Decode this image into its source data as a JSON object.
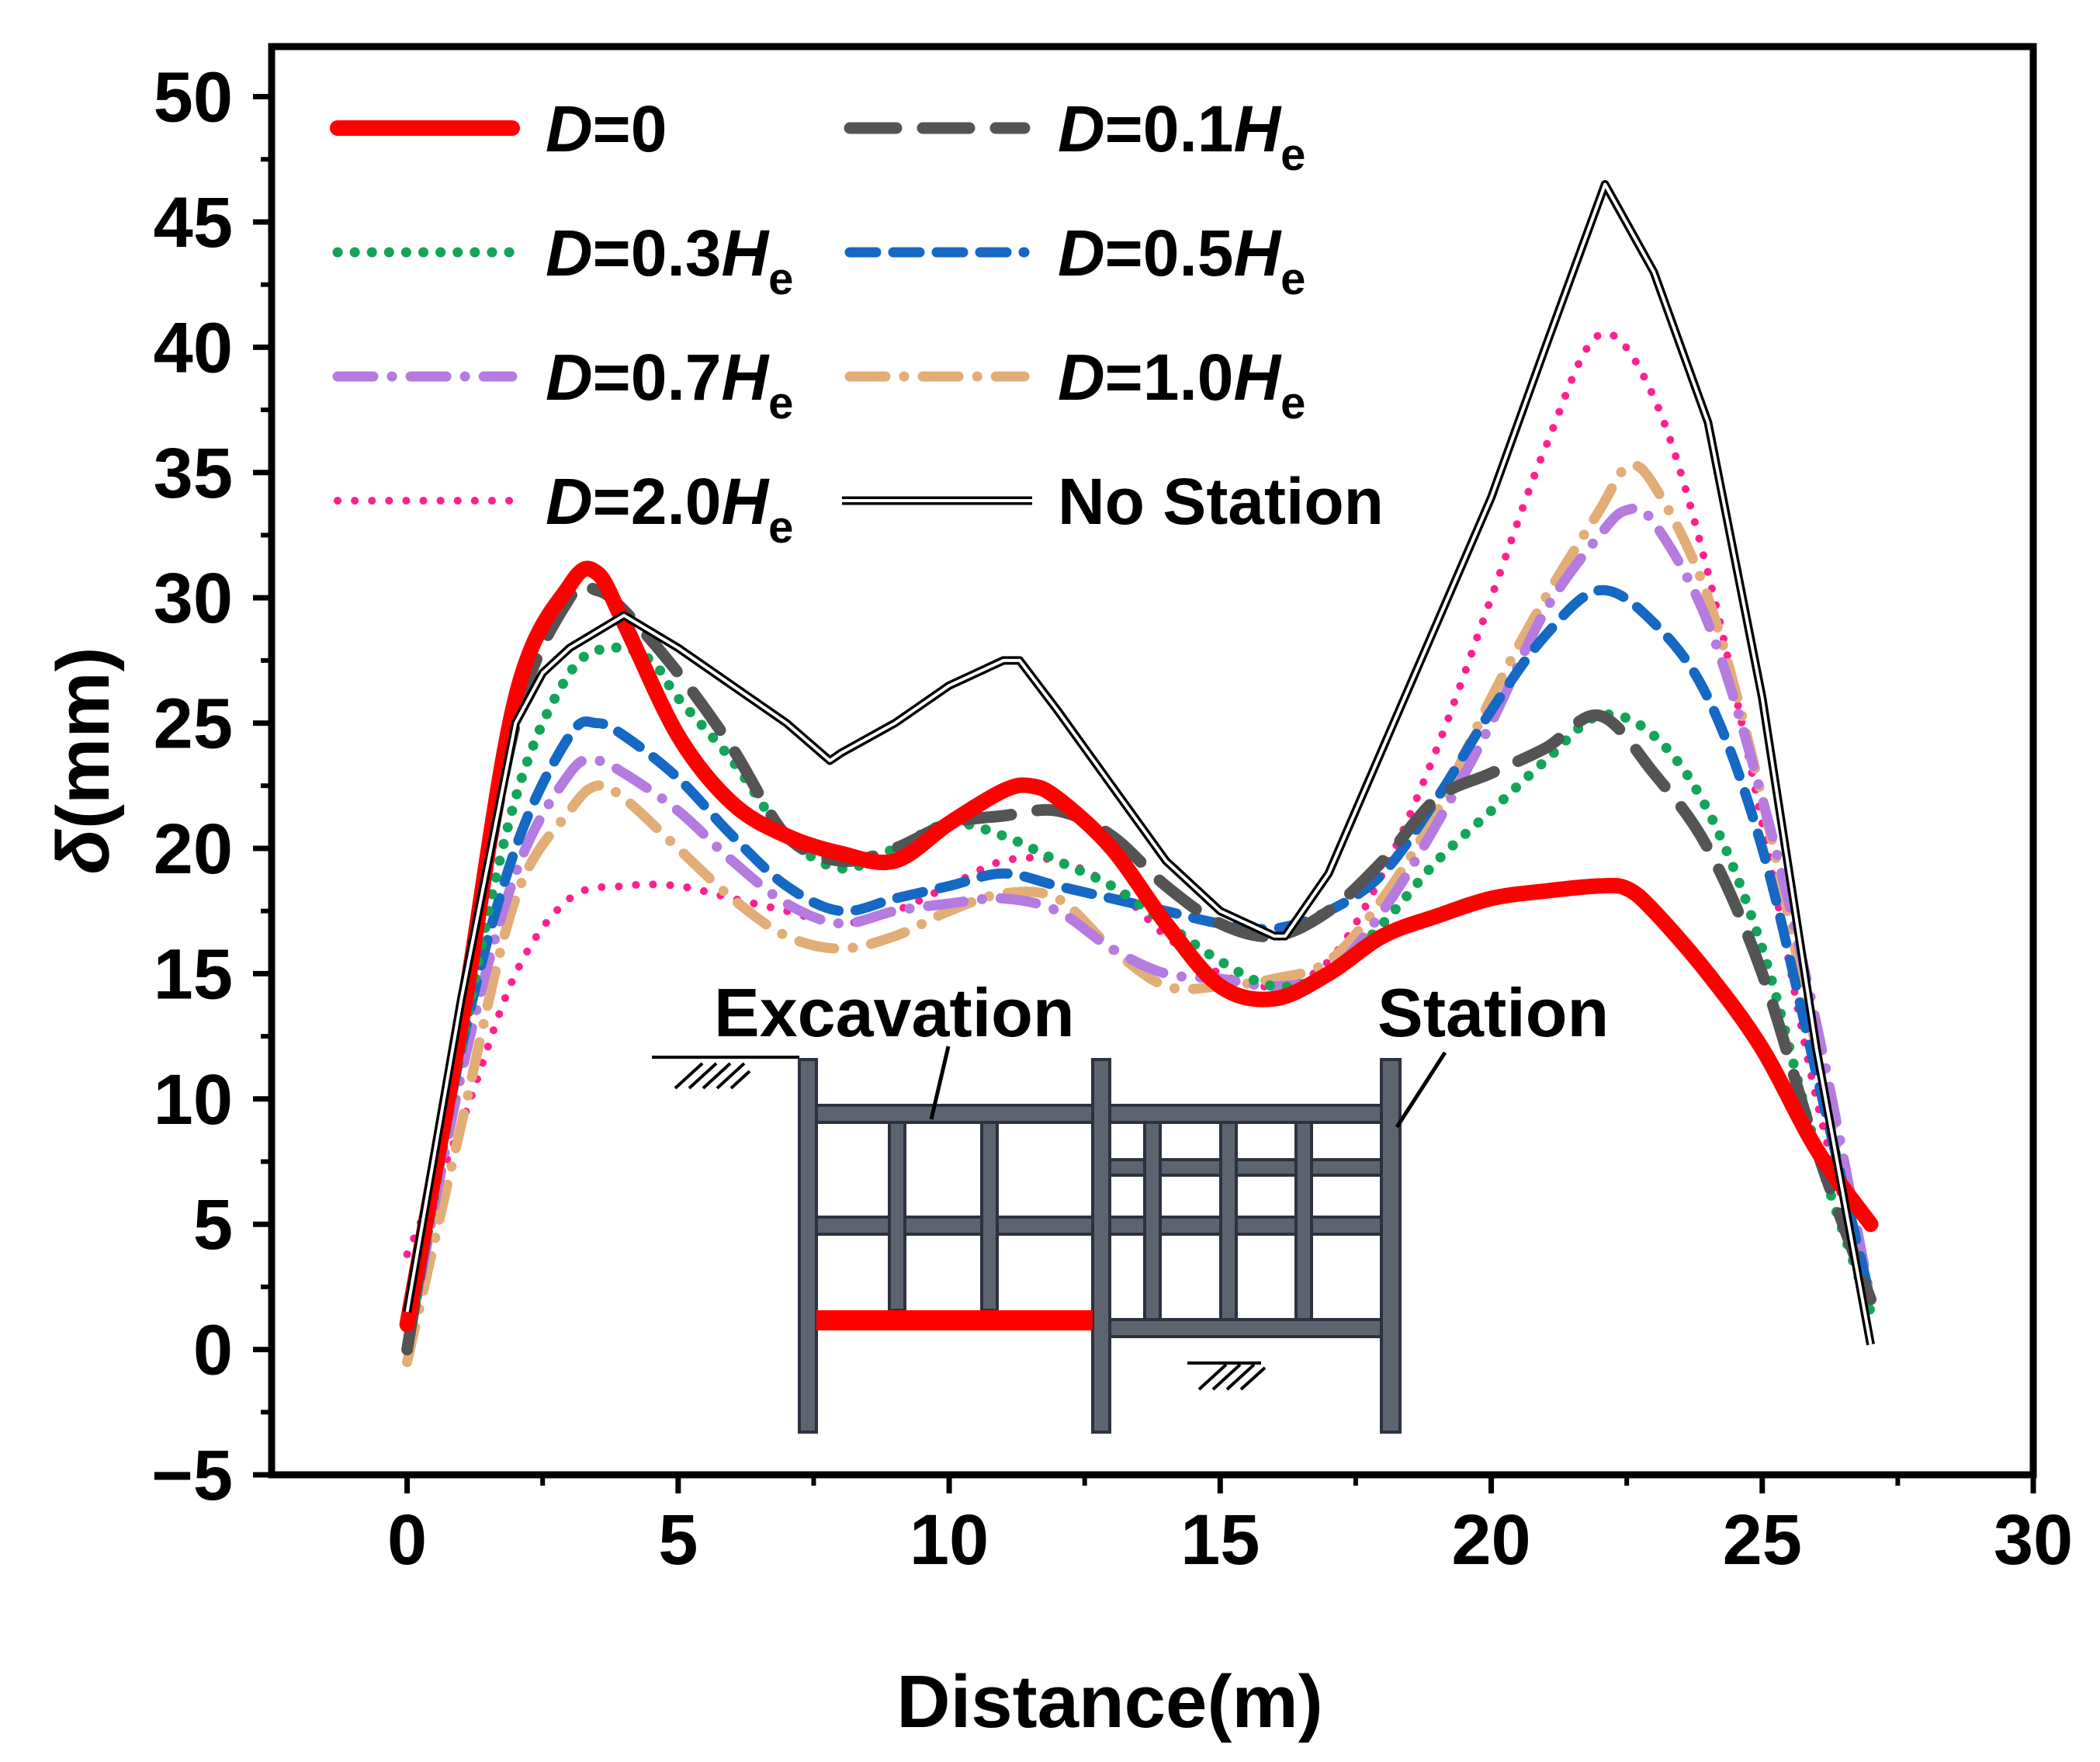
{
  "chart_data": {
    "type": "line",
    "title": "",
    "xlabel": "Distance(m)",
    "ylabel_symbol": "δ",
    "ylabel_unit": "(mm)",
    "xlim": [
      -2.5,
      30
    ],
    "ylim": [
      -5,
      52
    ],
    "xticks": [
      0,
      5,
      10,
      15,
      20,
      25,
      30
    ],
    "yticks": [
      -5,
      0,
      5,
      10,
      15,
      20,
      25,
      30,
      35,
      40,
      45,
      50
    ],
    "xtick_labels": [
      "0",
      "5",
      "10",
      "15",
      "20",
      "25",
      "30"
    ],
    "ytick_labels": [
      "−5",
      "0",
      "5",
      "10",
      "15",
      "20",
      "25",
      "30",
      "35",
      "40",
      "45",
      "50"
    ],
    "legend_position": "top-left",
    "series": [
      {
        "name_var": "D",
        "name_eq": "=0",
        "name_sub": "",
        "color": "#ff0000",
        "style": "solid",
        "x": [
          0,
          1,
          2,
          3,
          3.5,
          4,
          5,
          6,
          7,
          8,
          9,
          10,
          11,
          11.5,
          12,
          13,
          14,
          15,
          16,
          17,
          18,
          19,
          20,
          21,
          22,
          22.5,
          23,
          24,
          25,
          26,
          27
        ],
        "y": [
          1,
          13,
          26,
          30.5,
          31,
          29,
          24.5,
          21.8,
          20.5,
          19.8,
          19.5,
          21,
          22.3,
          22.5,
          22,
          20,
          17,
          14.5,
          14,
          15,
          16.5,
          17.3,
          18,
          18.3,
          18.5,
          18.4,
          17.5,
          15,
          12,
          8,
          5
        ]
      },
      {
        "name_var": "D",
        "name_eq": "=0.1",
        "name_sub": "e",
        "color": "#545454",
        "style": "longdash",
        "x": [
          0,
          1,
          2,
          3,
          3.5,
          4,
          5,
          6,
          7,
          8,
          9,
          10,
          11,
          12,
          13,
          14,
          15,
          16,
          17,
          18,
          19,
          20,
          21,
          22,
          23,
          24,
          25,
          26,
          27
        ],
        "y": [
          0,
          13,
          25,
          30,
          30.3,
          29.5,
          27,
          24,
          20.5,
          19.5,
          20,
          21,
          21.3,
          21.5,
          20.5,
          18.5,
          17,
          16.5,
          17.5,
          19.5,
          22,
          23,
          24,
          25.3,
          23,
          20,
          15,
          8,
          2
        ]
      },
      {
        "name_var": "D",
        "name_eq": "=0.3",
        "name_sub": "e",
        "color": "#12a55a",
        "style": "dots",
        "x": [
          0,
          1,
          2,
          3,
          3.8,
          4.5,
          5,
          6,
          7,
          8,
          9,
          10,
          11,
          12,
          13,
          14,
          15,
          16,
          17,
          18,
          19,
          20,
          21,
          22,
          23,
          24,
          25,
          26,
          27
        ],
        "y": [
          0,
          12,
          22,
          27,
          28,
          27.5,
          26,
          23.5,
          20.5,
          19.2,
          20,
          21,
          20.5,
          19.5,
          18.5,
          17,
          15.5,
          14.5,
          15,
          17,
          19.5,
          21.5,
          23.5,
          25.3,
          24.5,
          21.5,
          16,
          8,
          1.5
        ]
      },
      {
        "name_var": "D",
        "name_eq": "=0.5",
        "name_sub": "e",
        "color": "#1568c4",
        "style": "dash",
        "x": [
          0,
          1,
          2,
          3,
          3.5,
          4,
          5,
          6,
          7,
          8,
          9,
          10,
          11,
          12,
          13,
          14,
          15,
          16,
          17,
          18,
          19,
          20,
          21,
          22,
          23,
          24,
          25,
          26,
          27
        ],
        "y": [
          0,
          12,
          20,
          24.5,
          25,
          24.5,
          22.8,
          20.5,
          18.5,
          17.5,
          18,
          18.5,
          19,
          18.5,
          18,
          17.5,
          17,
          16.8,
          17.5,
          19,
          22,
          25.5,
          28.5,
          30.3,
          29,
          26,
          20,
          11,
          2
        ]
      },
      {
        "name_var": "D",
        "name_eq": "=0.7",
        "name_sub": "e",
        "color": "#b57be0",
        "style": "dashdot",
        "x": [
          0,
          1,
          2,
          3,
          3.5,
          4,
          5,
          6,
          7,
          8,
          9,
          10,
          11,
          12,
          13,
          14,
          15,
          16,
          17,
          18,
          19,
          20,
          21,
          22,
          22.5,
          23,
          24,
          25,
          26,
          27
        ],
        "y": [
          0,
          11,
          19,
          23,
          23.5,
          23,
          21.5,
          19.5,
          17.8,
          17,
          17.5,
          17.8,
          18,
          17.5,
          16,
          15,
          14.8,
          14.5,
          15,
          17.5,
          21,
          25,
          29.5,
          32.5,
          33.5,
          33,
          29,
          22,
          13,
          2
        ]
      },
      {
        "name_var": "D",
        "name_eq": "=1.0",
        "name_sub": "e",
        "color": "#e3ad78",
        "style": "dashdot",
        "x": [
          0,
          1,
          2,
          3,
          3.5,
          4,
          5,
          6,
          7,
          8,
          9,
          10,
          11,
          12,
          13,
          14,
          15,
          16,
          17,
          18,
          19,
          20,
          21,
          22,
          22.5,
          23,
          24,
          25,
          26,
          27
        ],
        "y": [
          -0.5,
          9,
          18,
          21.5,
          22.5,
          22,
          20,
          18,
          16.5,
          16,
          16.5,
          17.5,
          18.2,
          18,
          16,
          14.5,
          14.5,
          14.8,
          15.5,
          18,
          21.5,
          26,
          30,
          33.5,
          35.2,
          34.5,
          30,
          22,
          12,
          2
        ]
      },
      {
        "name_var": "D",
        "name_eq": "=2.0",
        "name_sub": "e",
        "color": "#ff1f8f",
        "style": "dotted",
        "x": [
          0,
          1,
          2,
          3,
          4,
          5,
          6,
          7,
          8,
          9,
          10,
          11,
          12,
          13,
          14,
          15,
          16,
          17,
          18,
          19,
          20,
          21,
          22,
          23,
          24,
          25,
          26,
          27
        ],
        "y": [
          3.8,
          9,
          15,
          18,
          18.5,
          18.5,
          18,
          17.5,
          17,
          17.5,
          18.5,
          19.5,
          19.5,
          18.5,
          16.5,
          15,
          14.5,
          15.5,
          19,
          24,
          30,
          36,
          40.5,
          38,
          31,
          21,
          10,
          2
        ]
      },
      {
        "name_var": "",
        "name_eq": "No Station",
        "name_sub": "",
        "color": "#000000",
        "style": "double",
        "x": [
          0,
          1,
          2,
          2.5,
          3,
          4,
          5,
          6,
          7,
          7.8,
          8,
          9,
          10,
          11,
          11.3,
          12,
          13,
          14,
          15,
          16,
          16.2,
          17,
          18,
          19,
          20,
          21,
          22.1,
          23,
          24,
          25,
          26,
          27
        ],
        "y": [
          1.5,
          14,
          25,
          27,
          28,
          29.3,
          28,
          26.5,
          25,
          23.5,
          23.8,
          25,
          26.5,
          27.5,
          27.5,
          25.5,
          22.5,
          19.5,
          17.5,
          16.5,
          16.5,
          19,
          24,
          29,
          34,
          40,
          46.5,
          43,
          37,
          26,
          12,
          0.2
        ]
      }
    ]
  },
  "inset": {
    "excavation_label": "Excavation",
    "station_label": "Station"
  }
}
